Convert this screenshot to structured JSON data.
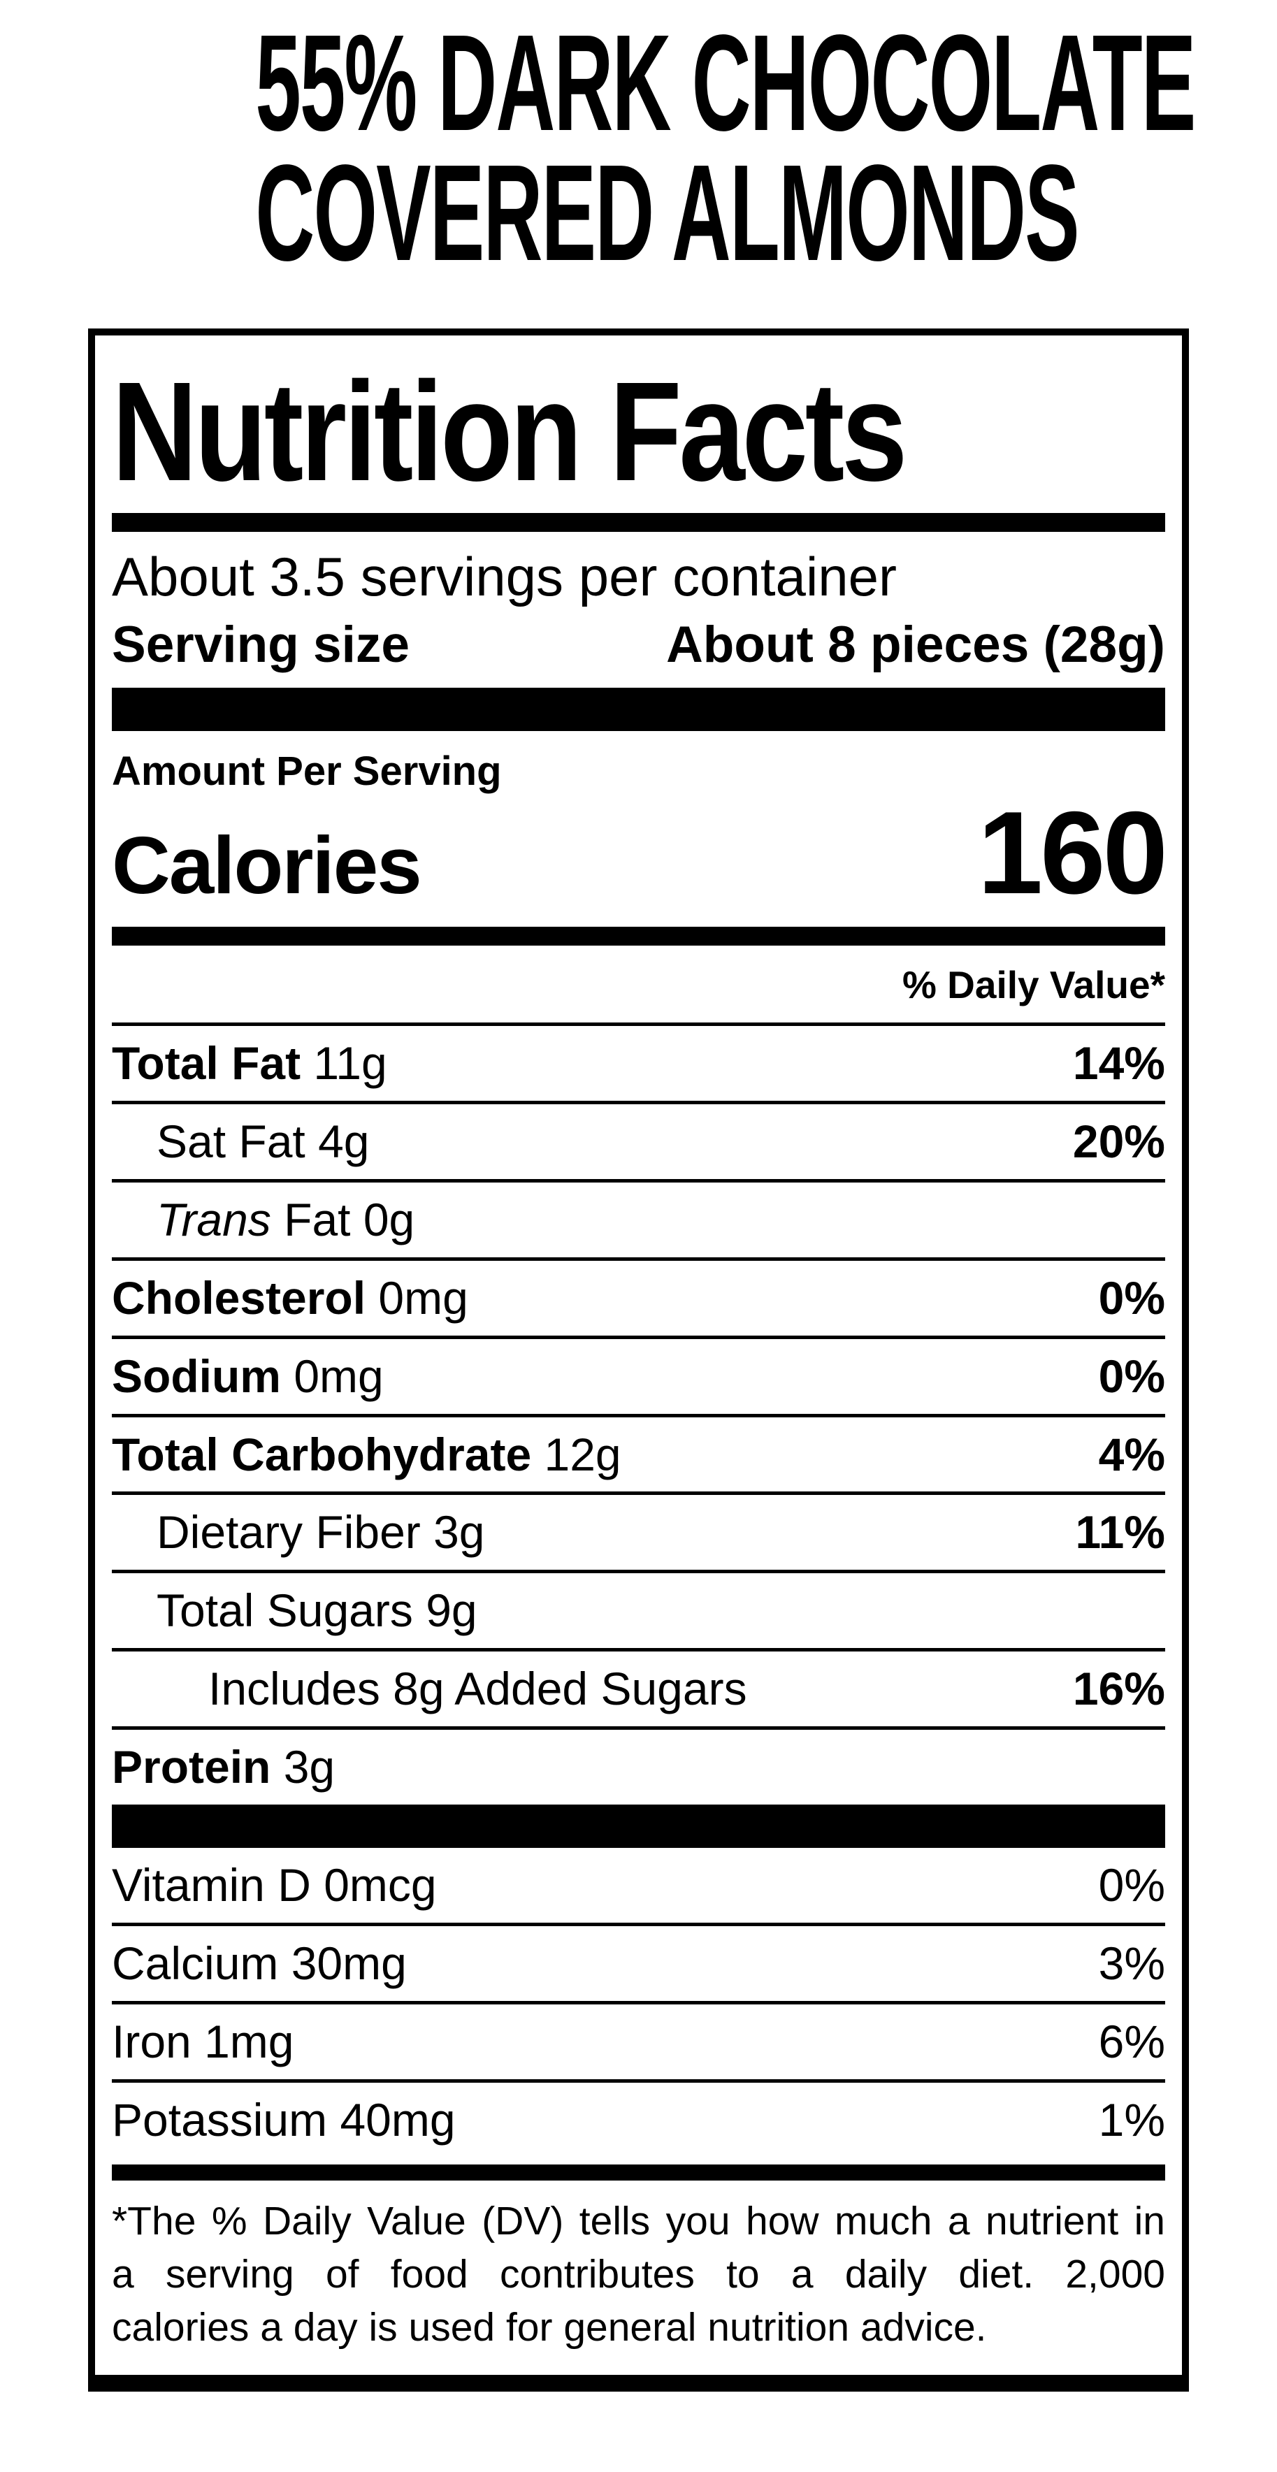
{
  "product": {
    "title_line1": "55% DARK CHOCOLATE",
    "title_line2": "COVERED ALMONDS"
  },
  "label": {
    "heading": "Nutrition Facts",
    "servings_per_container": "About 3.5 servings per container",
    "serving_size_label": "Serving size",
    "serving_size_value": "About 8 pieces (28g)",
    "amount_per_serving": "Amount Per Serving",
    "calories_label": "Calories",
    "calories_value": "160",
    "daily_value_header": "% Daily Value*",
    "rows": [
      {
        "bold": "Total Fat",
        "rest": " 11g",
        "dv": "14%"
      },
      {
        "rest": "Sat Fat 4g",
        "dv": "20%"
      },
      {
        "italic": "Trans",
        "rest": " Fat 0g"
      },
      {
        "bold": "Cholesterol",
        "rest": " 0mg",
        "dv": "0%"
      },
      {
        "bold": "Sodium",
        "rest": " 0mg",
        "dv": "0%"
      },
      {
        "bold": "Total Carbohydrate",
        "rest": " 12g",
        "dv": "4%"
      },
      {
        "rest": "Dietary Fiber 3g",
        "dv": "11%"
      },
      {
        "rest": "Total Sugars 9g"
      },
      {
        "rest": "Includes 8g Added Sugars",
        "dv": "16%"
      },
      {
        "bold": "Protein",
        "rest": " 3g"
      }
    ],
    "vitamins": [
      {
        "name": "Vitamin D 0mcg",
        "dv": "0%"
      },
      {
        "name": "Calcium 30mg",
        "dv": "3%"
      },
      {
        "name": "Iron 1mg",
        "dv": "6%"
      },
      {
        "name": "Potassium 40mg",
        "dv": "1%"
      }
    ],
    "footnote_line1": "*The % Daily Value (DV) tells you how much a nutrient in",
    "footnote_line2": "a serving of food contributes to a daily diet. 2,000",
    "footnote_line3": "calories a day is used for general nutrition advice."
  }
}
